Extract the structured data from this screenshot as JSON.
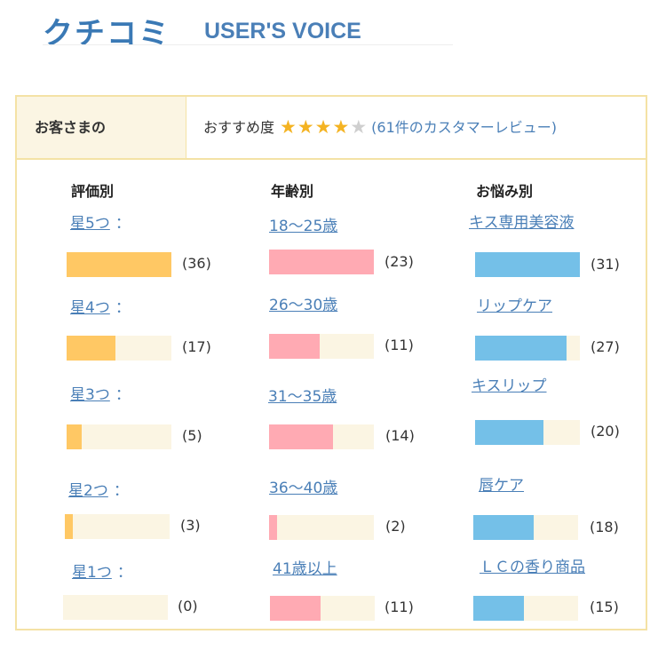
{
  "header": {
    "title_jp": "クチコミ",
    "title_en": "USER'S VOICE"
  },
  "summary": {
    "label": "お客さまの",
    "rating_label": "おすすめ度",
    "rating": 4,
    "stars_total": 5,
    "review_count_text": "(61件のカスタマーレビュー)"
  },
  "columns": [
    {
      "heading": "評価別",
      "items": [
        {
          "label": "星5つ",
          "count_text": "(36)",
          "fraction": 1.0
        },
        {
          "label": "星4つ",
          "count_text": "(17)",
          "fraction": 0.47
        },
        {
          "label": "星3つ",
          "count_text": "(5)",
          "fraction": 0.14
        },
        {
          "label": "星2つ",
          "count_text": "(3)",
          "fraction": 0.08
        },
        {
          "label": "星1つ",
          "count_text": "(0)",
          "fraction": 0
        }
      ]
    },
    {
      "heading": "年齢別",
      "items": [
        {
          "label": "18〜25歳",
          "count_text": "(23)",
          "fraction": 1.0
        },
        {
          "label": "26〜30歳",
          "count_text": "(11)",
          "fraction": 0.48
        },
        {
          "label": "31〜35歳",
          "count_text": "(14)",
          "fraction": 0.61
        },
        {
          "label": "36〜40歳",
          "count_text": "(2)",
          "fraction": 0.08
        },
        {
          "label": "41歳以上",
          "count_text": "(11)",
          "fraction": 0.48
        }
      ]
    },
    {
      "heading": "お悩み別",
      "items": [
        {
          "label": "キス専用美容液",
          "count_text": "(31)",
          "fraction": 1.0
        },
        {
          "label": "リップケア",
          "count_text": "(27)",
          "fraction": 0.87
        },
        {
          "label": "キスリップ",
          "count_text": "(20)",
          "fraction": 0.65
        },
        {
          "label": "唇ケア",
          "count_text": "(18)",
          "fraction": 0.58
        },
        {
          "label": "ＬＣの香り商品",
          "count_text": "(15)",
          "fraction": 0.48
        }
      ]
    }
  ],
  "colors": {
    "rating_bar": "#ffc864",
    "age_bar": "#ffaab3",
    "concern_bar": "#74c0e8",
    "bar_track": "#fbf5e3",
    "border": "#f4e2a5",
    "link": "#4a7fb7",
    "star": "#f4b322"
  }
}
